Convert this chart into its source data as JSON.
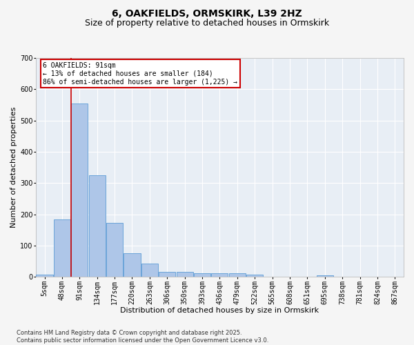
{
  "title1": "6, OAKFIELDS, ORMSKIRK, L39 2HZ",
  "title2": "Size of property relative to detached houses in Ormskirk",
  "xlabel": "Distribution of detached houses by size in Ormskirk",
  "ylabel": "Number of detached properties",
  "bar_labels": [
    "5sqm",
    "48sqm",
    "91sqm",
    "134sqm",
    "177sqm",
    "220sqm",
    "263sqm",
    "306sqm",
    "350sqm",
    "393sqm",
    "436sqm",
    "479sqm",
    "522sqm",
    "565sqm",
    "608sqm",
    "651sqm",
    "695sqm",
    "738sqm",
    "781sqm",
    "824sqm",
    "867sqm"
  ],
  "bar_values": [
    8,
    185,
    555,
    325,
    172,
    77,
    43,
    17,
    17,
    13,
    11,
    11,
    8,
    0,
    0,
    0,
    5,
    0,
    0,
    0,
    0
  ],
  "bar_color": "#aec6e8",
  "bar_edge_color": "#5b9bd5",
  "red_line_x": 2,
  "ylim": [
    0,
    700
  ],
  "yticks": [
    0,
    100,
    200,
    300,
    400,
    500,
    600,
    700
  ],
  "annotation_text": "6 OAKFIELDS: 91sqm\n← 13% of detached houses are smaller (184)\n86% of semi-detached houses are larger (1,225) →",
  "annotation_box_color": "#ffffff",
  "annotation_box_edge": "#cc0000",
  "footer_text": "Contains HM Land Registry data © Crown copyright and database right 2025.\nContains public sector information licensed under the Open Government Licence v3.0.",
  "bg_color": "#e8eef5",
  "grid_color": "#ffffff",
  "fig_bg_color": "#f5f5f5",
  "title_fontsize": 10,
  "subtitle_fontsize": 9,
  "axis_label_fontsize": 8,
  "tick_fontsize": 7,
  "footer_fontsize": 6,
  "annot_fontsize": 7
}
